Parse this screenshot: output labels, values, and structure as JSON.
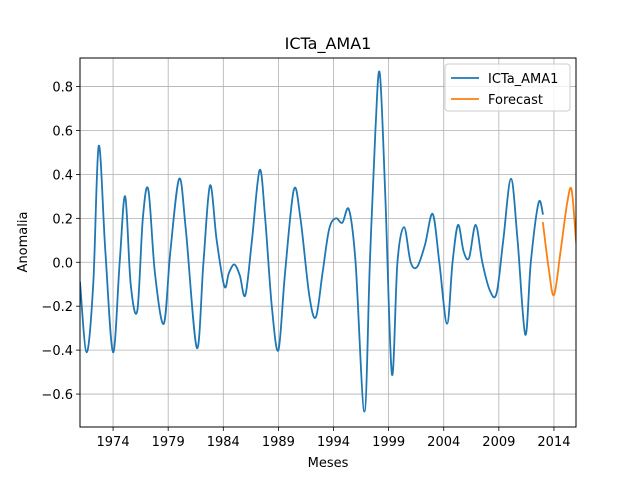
{
  "chart_data": {
    "type": "line",
    "title": "ICTa_AMA1",
    "xlabel": "Meses",
    "ylabel": "Anomalia",
    "xlim": [
      1971.0,
      2016.0
    ],
    "ylim": [
      -0.75,
      0.93
    ],
    "xticks": [
      1974,
      1979,
      1984,
      1989,
      1994,
      1999,
      2004,
      2009,
      2014
    ],
    "yticks": [
      -0.6,
      -0.4,
      -0.2,
      0.0,
      0.2,
      0.4,
      0.6,
      0.8
    ],
    "ytick_labels": [
      "−0.6",
      "−0.4",
      "−0.2",
      "0.0",
      "0.2",
      "0.4",
      "0.6",
      "0.8"
    ],
    "grid": true,
    "legend_position": "top-right",
    "series": [
      {
        "name": "ICTa_AMA1",
        "color": "#1f77b4",
        "points": [
          [
            1971.0,
            -0.09
          ],
          [
            1971.6,
            -0.41
          ],
          [
            1972.2,
            -0.1
          ],
          [
            1972.7,
            0.53
          ],
          [
            1973.3,
            0.05
          ],
          [
            1974.0,
            -0.41
          ],
          [
            1974.6,
            0.0
          ],
          [
            1975.1,
            0.3
          ],
          [
            1975.6,
            -0.1
          ],
          [
            1976.2,
            -0.22
          ],
          [
            1976.7,
            0.2
          ],
          [
            1977.2,
            0.33
          ],
          [
            1977.8,
            -0.05
          ],
          [
            1978.6,
            -0.28
          ],
          [
            1979.2,
            0.05
          ],
          [
            1980.0,
            0.38
          ],
          [
            1980.6,
            0.15
          ],
          [
            1981.6,
            -0.39
          ],
          [
            1982.2,
            0.0
          ],
          [
            1982.8,
            0.35
          ],
          [
            1983.4,
            0.1
          ],
          [
            1984.1,
            -0.11
          ],
          [
            1984.5,
            -0.05
          ],
          [
            1985.0,
            -0.01
          ],
          [
            1985.5,
            -0.06
          ],
          [
            1986.0,
            -0.15
          ],
          [
            1986.6,
            0.1
          ],
          [
            1987.3,
            0.42
          ],
          [
            1987.8,
            0.2
          ],
          [
            1988.4,
            -0.2
          ],
          [
            1989.0,
            -0.4
          ],
          [
            1989.6,
            -0.05
          ],
          [
            1990.4,
            0.33
          ],
          [
            1991.0,
            0.2
          ],
          [
            1991.8,
            -0.15
          ],
          [
            1992.4,
            -0.25
          ],
          [
            1993.0,
            -0.05
          ],
          [
            1993.6,
            0.15
          ],
          [
            1994.2,
            0.2
          ],
          [
            1994.8,
            0.18
          ],
          [
            1995.4,
            0.24
          ],
          [
            1996.0,
            0.0
          ],
          [
            1996.8,
            -0.68
          ],
          [
            1997.3,
            0.0
          ],
          [
            1997.8,
            0.6
          ],
          [
            1998.2,
            0.86
          ],
          [
            1998.7,
            0.3
          ],
          [
            1999.3,
            -0.51
          ],
          [
            1999.8,
            0.0
          ],
          [
            2000.4,
            0.16
          ],
          [
            2001.0,
            0.0
          ],
          [
            2001.6,
            -0.02
          ],
          [
            2002.3,
            0.08
          ],
          [
            2003.0,
            0.22
          ],
          [
            2003.6,
            0.0
          ],
          [
            2004.3,
            -0.28
          ],
          [
            2004.8,
            0.0
          ],
          [
            2005.3,
            0.17
          ],
          [
            2005.8,
            0.05
          ],
          [
            2006.3,
            0.02
          ],
          [
            2006.9,
            0.17
          ],
          [
            2007.5,
            0.0
          ],
          [
            2008.2,
            -0.13
          ],
          [
            2008.8,
            -0.14
          ],
          [
            2009.4,
            0.1
          ],
          [
            2010.1,
            0.38
          ],
          [
            2010.7,
            0.1
          ],
          [
            2011.4,
            -0.33
          ],
          [
            2011.9,
            0.0
          ],
          [
            2012.6,
            0.27
          ],
          [
            2013.0,
            0.22
          ]
        ]
      },
      {
        "name": "Forecast",
        "color": "#ff7f0e",
        "points": [
          [
            2013.0,
            0.18
          ],
          [
            2013.5,
            -0.02
          ],
          [
            2014.0,
            -0.15
          ],
          [
            2014.6,
            0.05
          ],
          [
            2015.2,
            0.27
          ],
          [
            2015.6,
            0.33
          ],
          [
            2016.0,
            0.1
          ],
          [
            2016.2,
            0.0
          ]
        ]
      }
    ]
  }
}
